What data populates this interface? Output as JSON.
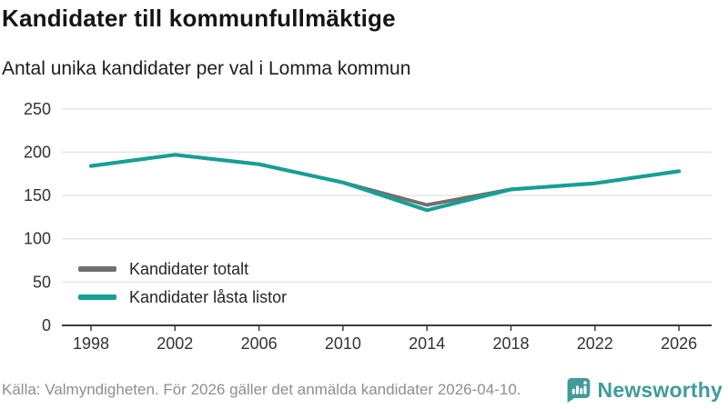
{
  "header": {
    "title": "Kandidater till kommunfullmäktige",
    "subtitle": "Antal unika kandidater per val i Lomma kommun"
  },
  "chart_data": {
    "type": "line",
    "title": "Kandidater till kommunfullmäktige",
    "subtitle": "Antal unika kandidater per val i Lomma kommun",
    "categories": [
      "1998",
      "2002",
      "2006",
      "2010",
      "2014",
      "2018",
      "2022",
      "2026"
    ],
    "series": [
      {
        "name": "Kandidater totalt",
        "color": "#707070",
        "values": [
          184,
          197,
          186,
          165,
          139,
          157,
          164,
          178
        ]
      },
      {
        "name": "Kandidater låsta listor",
        "color": "#14a096",
        "values": [
          184,
          197,
          186,
          165,
          133,
          157,
          164,
          178
        ]
      }
    ],
    "xlabel": "",
    "ylabel": "",
    "ylim": [
      0,
      250
    ],
    "yticks": [
      0,
      50,
      100,
      150,
      200,
      250
    ],
    "grid": "horizontal",
    "legend_position": "inside-bottom-left"
  },
  "footer": {
    "source": "Källa: Valmyndigheten. För 2026 gäller det anmälda kandidater 2026-04-10.",
    "brand": "Newsworthy"
  },
  "colors": {
    "accent_teal": "#14a096",
    "series_gray": "#707070",
    "brand_teal": "#3f9c9a",
    "gridline": "#e3e3e3",
    "axis": "#3c3c3c"
  }
}
